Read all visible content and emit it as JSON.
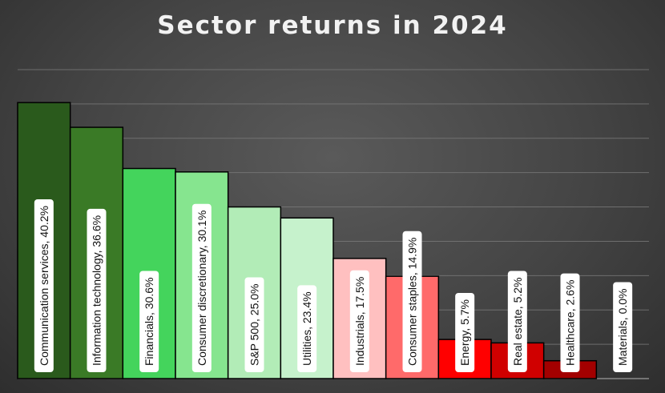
{
  "chart_data": {
    "type": "bar",
    "title": "Sector returns in 2024",
    "xlabel": "",
    "ylabel": "",
    "ylim": [
      0,
      45
    ],
    "grid": true,
    "legend": "none",
    "categories": [
      "Communication services",
      "Information technology",
      "Financials",
      "Consumer discretionary",
      "S&P 500",
      "Utilities",
      "Industrials",
      "Consumer staples",
      "Energy",
      "Real estate",
      "Healthcare",
      "Materials"
    ],
    "values": [
      40.2,
      36.6,
      30.6,
      30.1,
      25.0,
      23.4,
      17.5,
      14.9,
      5.7,
      5.2,
      2.6,
      0.0
    ],
    "labels": [
      "Communication services, 40.2%",
      "Information technology, 36.6%",
      "Financials, 30.6%",
      "Consumer discretionary, 30.1%",
      "S&P 500, 25.0%",
      "Utilities, 23.4%",
      "Industrials, 17.5%",
      "Consumer staples, 14.9%",
      "Energy, 5.7%",
      "Real estate, 5.2%",
      "Healthcare, 2.6%",
      "Materials, 0.0%"
    ],
    "colors": [
      "#2a5a1c",
      "#3a7a26",
      "#44d45c",
      "#86e58f",
      "#b2ecb7",
      "#c6f2cc",
      "#ffc0c0",
      "#ff6a6a",
      "#ff0000",
      "#d00000",
      "#a30000",
      "#7a0000"
    ]
  }
}
